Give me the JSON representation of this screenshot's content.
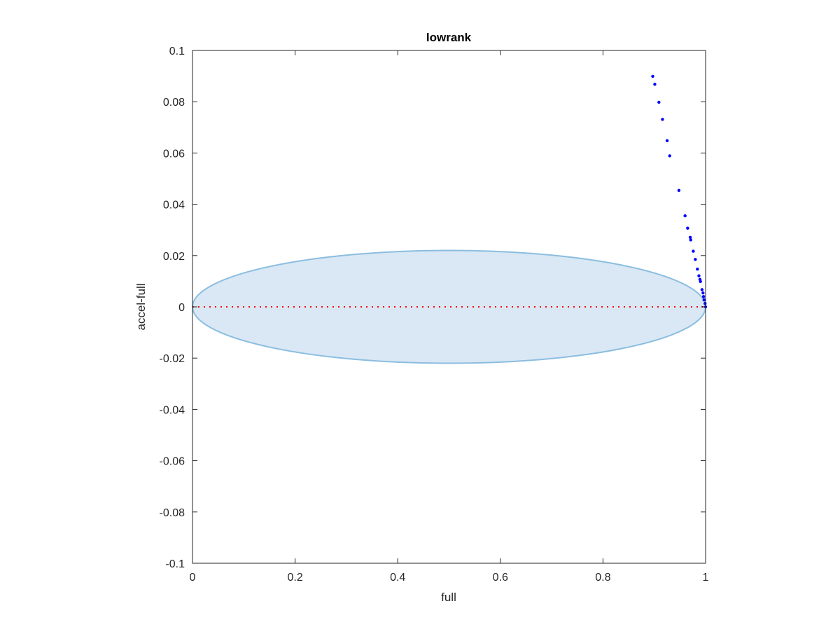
{
  "chart_data": {
    "type": "scatter",
    "title": "lowrank",
    "xlabel": "full",
    "ylabel": "accel-full",
    "xlim": [
      0,
      1
    ],
    "ylim": [
      -0.1,
      0.1
    ],
    "xticks": [
      "0",
      "0.2",
      "0.4",
      "0.6",
      "0.8",
      "1"
    ],
    "xtick_values": [
      0,
      0.2,
      0.4,
      0.6,
      0.8,
      1
    ],
    "yticks": [
      "-0.1",
      "-0.08",
      "-0.06",
      "-0.04",
      "-0.02",
      "0",
      "0.02",
      "0.04",
      "0.06",
      "0.08",
      "0.1"
    ],
    "ytick_values": [
      -0.1,
      -0.08,
      -0.06,
      -0.04,
      -0.02,
      0,
      0.02,
      0.04,
      0.06,
      0.08,
      0.1
    ],
    "grid": false,
    "ellipse": {
      "cx": 0.5,
      "cy": 0,
      "rx": 0.5,
      "ry": 0.022,
      "fill": "#d9e8f4",
      "stroke": "#8bbde0"
    },
    "reference_line": {
      "y": 0,
      "x_range": [
        0,
        1
      ],
      "color": "#ff0000",
      "style": "dotted"
    },
    "series": [
      {
        "name": "points",
        "color": "#0000ff",
        "x": [
          0.897,
          0.901,
          0.909,
          0.916,
          0.925,
          0.93,
          0.948,
          0.96,
          0.965,
          0.97,
          0.971,
          0.976,
          0.98,
          0.984,
          0.987,
          0.989,
          0.99,
          0.993,
          0.995,
          0.996,
          0.997,
          0.999,
          1.0
        ],
        "y": [
          0.0899,
          0.0868,
          0.0798,
          0.0731,
          0.0648,
          0.0589,
          0.0454,
          0.0355,
          0.0307,
          0.0271,
          0.0261,
          0.0217,
          0.0185,
          0.0147,
          0.0121,
          0.0107,
          0.0099,
          0.0067,
          0.0054,
          0.004,
          0.0027,
          0.0013,
          0.0
        ]
      }
    ]
  }
}
